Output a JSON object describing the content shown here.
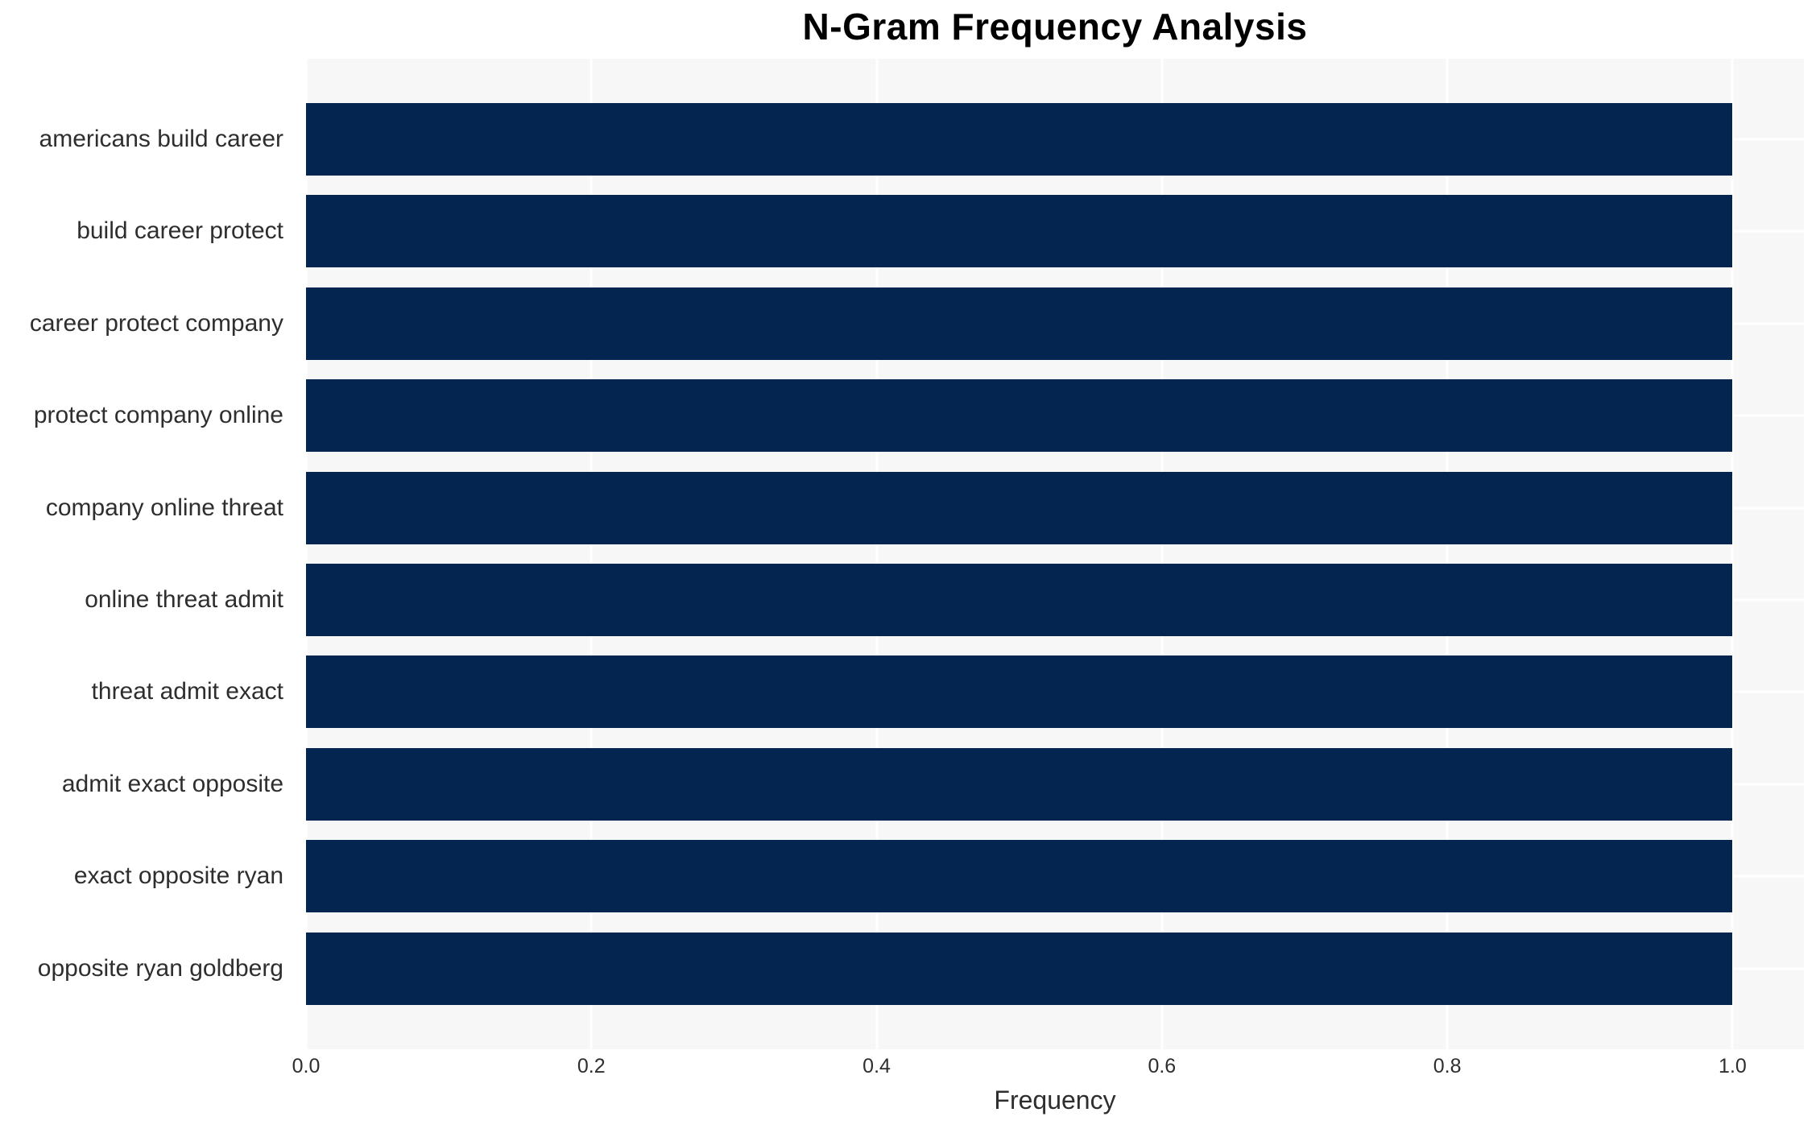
{
  "chart_data": {
    "type": "bar",
    "orientation": "horizontal",
    "title": "N-Gram Frequency Analysis",
    "xlabel": "Frequency",
    "ylabel": "",
    "categories": [
      "americans build career",
      "build career protect",
      "career protect company",
      "protect company online",
      "company online threat",
      "online threat admit",
      "threat admit exact",
      "admit exact opposite",
      "exact opposite ryan",
      "opposite ryan goldberg"
    ],
    "values": [
      1.0,
      1.0,
      1.0,
      1.0,
      1.0,
      1.0,
      1.0,
      1.0,
      1.0,
      1.0
    ],
    "xticks": [
      {
        "value": 0.0,
        "label": "0.0"
      },
      {
        "value": 0.2,
        "label": "0.2"
      },
      {
        "value": 0.4,
        "label": "0.4"
      },
      {
        "value": 0.6,
        "label": "0.6"
      },
      {
        "value": 0.8,
        "label": "0.8"
      },
      {
        "value": 1.0,
        "label": "1.0"
      }
    ],
    "xlim": [
      0,
      1.05
    ],
    "grid": true,
    "legend_position": "none",
    "colors": {
      "bar": "#03254f",
      "plot_background": "#f7f7f8",
      "grid": "#ffffff",
      "text": "#2e2e2e",
      "title": "#000000"
    }
  }
}
